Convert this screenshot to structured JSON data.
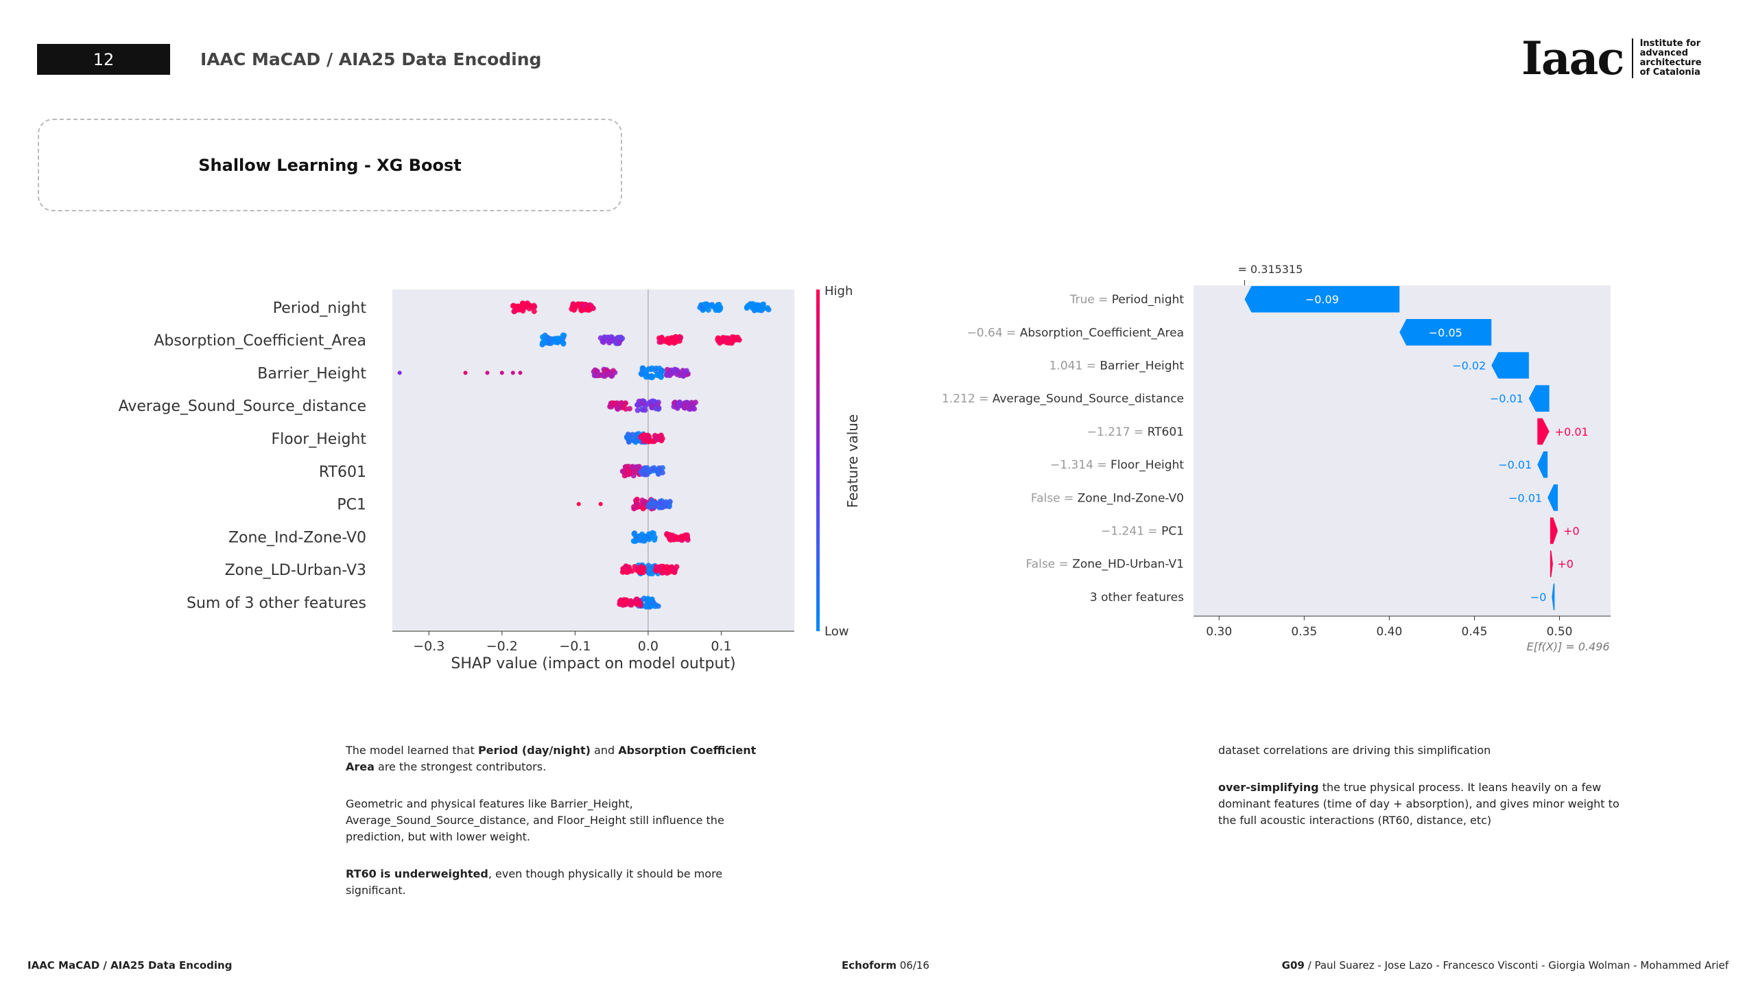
{
  "header": {
    "page_number": "12",
    "title": "IAAC MaCAD / AIA25 Data Encoding"
  },
  "section": {
    "title": "Shallow Learning - XG Boost"
  },
  "logo": {
    "mark": "Iaac",
    "text_lines": [
      "Institute for",
      "advanced",
      "architecture",
      "of Catalonia"
    ]
  },
  "chart_data": [
    {
      "type": "scatter",
      "subtype": "shap-beeswarm",
      "xlabel": "SHAP value (impact on model output)",
      "xlim": [
        -0.35,
        0.2
      ],
      "xticks": [
        -0.3,
        -0.2,
        -0.1,
        0.0,
        0.1
      ],
      "xtick_labels": [
        "−0.3",
        "−0.2",
        "−0.1",
        "0.0",
        "0.1"
      ],
      "grid": false,
      "colorbar": {
        "label": "Feature value",
        "high": "High",
        "low": "Low",
        "high_color": "#ff0052",
        "low_color": "#008bfb"
      },
      "features": [
        {
          "name": "Period_night",
          "clusters": [
            {
              "x": -0.17,
              "level": 1
            },
            {
              "x": -0.09,
              "level": 1
            },
            {
              "x": 0.085,
              "level": 0
            },
            {
              "x": 0.15,
              "level": 0
            }
          ]
        },
        {
          "name": "Absorption_Coefficient_Area",
          "clusters": [
            {
              "x": -0.13,
              "level": 0
            },
            {
              "x": -0.05,
              "level": 0.5
            },
            {
              "x": 0.03,
              "level": 1
            },
            {
              "x": 0.11,
              "level": 1
            }
          ]
        },
        {
          "name": "Barrier_Height",
          "clusters": [
            {
              "x": 0.005,
              "level": 0
            },
            {
              "x": -0.06,
              "level": 0.7
            },
            {
              "x": 0.04,
              "level": 0.6
            }
          ],
          "outliers": [
            {
              "x": -0.34,
              "level": 0.5
            },
            {
              "x": -0.25,
              "level": 0.9
            },
            {
              "x": -0.22,
              "level": 0.8
            },
            {
              "x": -0.2,
              "level": 0.8
            },
            {
              "x": -0.185,
              "level": 0.8
            },
            {
              "x": -0.175,
              "level": 0.8
            }
          ]
        },
        {
          "name": "Average_Sound_Source_distance",
          "clusters": [
            {
              "x": 0.0,
              "level": 0.5
            },
            {
              "x": -0.04,
              "level": 0.8
            },
            {
              "x": 0.05,
              "level": 0.6
            }
          ]
        },
        {
          "name": "Floor_Height",
          "clusters": [
            {
              "x": -0.015,
              "level": 0.1
            },
            {
              "x": 0.005,
              "level": 0.9
            }
          ]
        },
        {
          "name": "RT601",
          "clusters": [
            {
              "x": -0.02,
              "level": 0.8
            },
            {
              "x": 0.005,
              "level": 0.2
            }
          ]
        },
        {
          "name": "PC1",
          "clusters": [
            {
              "x": -0.005,
              "level": 0.9
            },
            {
              "x": 0.015,
              "level": 0.2
            }
          ],
          "outliers": [
            {
              "x": -0.095,
              "level": 1
            },
            {
              "x": -0.065,
              "level": 1
            }
          ]
        },
        {
          "name": "Zone_Ind-Zone-V0",
          "clusters": [
            {
              "x": -0.005,
              "level": 0
            },
            {
              "x": 0.04,
              "level": 1
            }
          ]
        },
        {
          "name": "Zone_LD-Urban-V3",
          "clusters": [
            {
              "x": 0.0,
              "level": 0
            },
            {
              "x": -0.02,
              "level": 1
            },
            {
              "x": 0.025,
              "level": 1
            }
          ]
        },
        {
          "name": "Sum of 3 other features",
          "clusters": [
            {
              "x": 0.0,
              "level": 0
            },
            {
              "x": -0.025,
              "level": 1
            }
          ]
        }
      ]
    },
    {
      "type": "bar",
      "subtype": "shap-waterfall",
      "xlim": [
        0.285,
        0.53
      ],
      "xticks": [
        0.3,
        0.35,
        0.4,
        0.45,
        0.5
      ],
      "xtick_labels": [
        "0.30",
        "0.35",
        "0.40",
        "0.45",
        "0.50"
      ],
      "fx_label": "= 0.315315",
      "fx_value": 0.315,
      "efx_label": "E[f(X)] = 0.496",
      "efx_value": 0.496,
      "rows": [
        {
          "value_label": "True",
          "feature": "Period_night",
          "start": 0.406,
          "end": 0.315,
          "label": "−0.09",
          "sign": "neg"
        },
        {
          "value_label": "−0.64",
          "feature": "Absorption_Coefficient_Area",
          "start": 0.46,
          "end": 0.406,
          "label": "−0.05",
          "sign": "neg"
        },
        {
          "value_label": "1.041",
          "feature": "Barrier_Height",
          "start": 0.482,
          "end": 0.46,
          "label": "−0.02",
          "sign": "neg"
        },
        {
          "value_label": "1.212",
          "feature": "Average_Sound_Source_distance",
          "start": 0.494,
          "end": 0.482,
          "label": "−0.01",
          "sign": "neg"
        },
        {
          "value_label": "−1.217",
          "feature": "RT601",
          "start": 0.487,
          "end": 0.494,
          "label": "+0.01",
          "sign": "pos"
        },
        {
          "value_label": "−1.314",
          "feature": "Floor_Height",
          "start": 0.493,
          "end": 0.487,
          "label": "−0.01",
          "sign": "neg"
        },
        {
          "value_label": "False",
          "feature": "Zone_Ind-Zone-V0",
          "start": 0.499,
          "end": 0.493,
          "label": "−0.01",
          "sign": "neg"
        },
        {
          "value_label": "−1.241",
          "feature": "PC1",
          "start": 0.4945,
          "end": 0.499,
          "label": "+0",
          "sign": "pos"
        },
        {
          "value_label": "False",
          "feature": "Zone_HD-Urban-V1",
          "start": 0.4945,
          "end": 0.4955,
          "label": "+0",
          "sign": "pos"
        },
        {
          "value_label": "",
          "feature": "3 other features",
          "start": 0.496,
          "end": 0.4955,
          "label": "−0",
          "sign": "neg"
        }
      ]
    }
  ],
  "text_left": [
    [
      {
        "t": "The model learned that "
      },
      {
        "t": "Period (day/night)",
        "b": true
      },
      {
        "t": " and "
      },
      {
        "t": "Absorption Coefficient Area",
        "b": true
      },
      {
        "t": " are the strongest contributors."
      }
    ],
    [
      {
        "t": "Geometric and physical features like Barrier_Height, Average_Sound_Source_distance, and Floor_Height still influence the prediction, but with lower weight."
      }
    ],
    [
      {
        "t": "RT60 is underweighted",
        "b": true
      },
      {
        "t": ", even though physically it should be more significant."
      }
    ]
  ],
  "text_right": [
    [
      {
        "t": "dataset correlations are driving this simplification"
      }
    ],
    [
      {
        "t": "over-simplifying",
        "b": true
      },
      {
        "t": " the true physical process. It leans heavily on a few dominant features (time of day + absorption), and gives minor weight to the full acoustic interactions (RT60, distance, etc)"
      }
    ]
  ],
  "footer": {
    "left": "IAAC MaCAD / AIA25 Data Encoding",
    "center_bold": "Echoform",
    "center_rest": " 06/16",
    "right_bold": "G09",
    "right_rest": " / Paul Suarez - Jose Lazo - Francesco Visconti - Giorgia Wolman - Mohammed Arief"
  }
}
